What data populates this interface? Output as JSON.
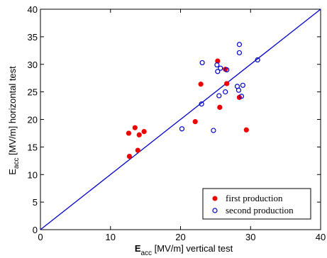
{
  "chart_data": {
    "type": "scatter",
    "xlabel_main": "E",
    "xlabel_sub": "acc",
    "xlabel_rest": " [MV/m] vertical test",
    "ylabel_main": "E",
    "ylabel_sub": "acc",
    "ylabel_rest": " [MV/m] horizontal test",
    "xlim": [
      0,
      40
    ],
    "ylim": [
      0,
      40
    ],
    "xticks": [
      0,
      10,
      20,
      30,
      40
    ],
    "yticks": [
      0,
      5,
      10,
      15,
      20,
      25,
      30,
      35,
      40
    ],
    "grid": false,
    "legend_position": "bottom-right",
    "reference_line": {
      "type": "diagonal",
      "from": [
        0,
        0
      ],
      "to": [
        40,
        40
      ],
      "color": "#0000cc"
    },
    "series": [
      {
        "name": "first production",
        "marker": "filled-circle",
        "color": "#ee0000",
        "x": [
          12.6,
          13.5,
          14.1,
          14.8,
          13.9,
          12.7,
          22.1,
          22.9,
          25.3,
          26.4,
          26.6,
          25.6,
          28.4,
          29.4
        ],
        "y": [
          17.5,
          18.5,
          17.2,
          17.8,
          14.4,
          13.3,
          19.6,
          26.4,
          30.6,
          29.1,
          26.5,
          22.2,
          24.0,
          18.1
        ]
      },
      {
        "name": "second production",
        "marker": "open-circle",
        "color": "#0000cc",
        "x": [
          20.2,
          23.0,
          23.1,
          24.7,
          25.2,
          25.3,
          25.5,
          25.7,
          26.4,
          26.6,
          28.1,
          28.3,
          28.4,
          28.4,
          28.7,
          28.9,
          31.0
        ],
        "y": [
          18.3,
          22.8,
          30.3,
          18.0,
          29.9,
          28.7,
          24.3,
          29.3,
          25.0,
          29.0,
          26.0,
          25.3,
          33.6,
          32.1,
          24.2,
          26.2,
          30.8
        ]
      }
    ]
  }
}
